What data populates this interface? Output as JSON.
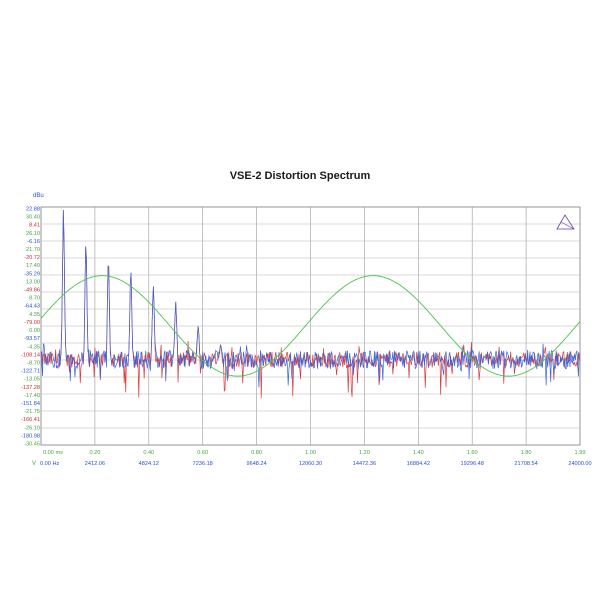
{
  "chart_data": {
    "type": "line",
    "title": "VSE-2 Distortion Spectrum",
    "left_axis_unit": "dBu",
    "left_axis_ticks": [
      {
        "label": "22.88",
        "color": "#2a4fd8"
      },
      {
        "label": "30.40",
        "color": "#3fa83f"
      },
      {
        "label": "8.41",
        "color": "#c03030"
      },
      {
        "label": "26.10",
        "color": "#3fa83f"
      },
      {
        "label": "-6.16",
        "color": "#2a4fd8"
      },
      {
        "label": "21.70",
        "color": "#3fa83f"
      },
      {
        "label": "-20.72",
        "color": "#c03030"
      },
      {
        "label": "17.40",
        "color": "#3fa83f"
      },
      {
        "label": "-35.29",
        "color": "#2a4fd8"
      },
      {
        "label": "13.00",
        "color": "#3fa83f"
      },
      {
        "label": "-49.86",
        "color": "#c03030"
      },
      {
        "label": "8.70",
        "color": "#3fa83f"
      },
      {
        "label": "-64.43",
        "color": "#2a4fd8"
      },
      {
        "label": "4.35",
        "color": "#3fa83f"
      },
      {
        "label": "-79.00",
        "color": "#c03030"
      },
      {
        "label": "0.00",
        "color": "#3fa83f"
      },
      {
        "label": "-93.57",
        "color": "#2a4fd8"
      },
      {
        "label": "-4.35",
        "color": "#3fa83f"
      },
      {
        "label": "-108.14",
        "color": "#c03030"
      },
      {
        "label": "-8.70",
        "color": "#3fa83f"
      },
      {
        "label": "-122.71",
        "color": "#2a4fd8"
      },
      {
        "label": "-13.05",
        "color": "#3fa83f"
      },
      {
        "label": "-137.28",
        "color": "#c03030"
      },
      {
        "label": "-17.40",
        "color": "#3fa83f"
      },
      {
        "label": "-151.84",
        "color": "#2a4fd8"
      },
      {
        "label": "-21.75",
        "color": "#3fa83f"
      },
      {
        "label": "-166.41",
        "color": "#c03030"
      },
      {
        "label": "-26.10",
        "color": "#3fa83f"
      },
      {
        "label": "-180.98",
        "color": "#2a4fd8"
      },
      {
        "label": "-30.45",
        "color": "#3fa83f"
      }
    ],
    "x_axis_green_ticks": [
      "0.00 ms",
      "0.20",
      "0.40",
      "0.60",
      "0.80",
      "1.00",
      "1.20",
      "1.40",
      "1.60",
      "1.80",
      "1.99"
    ],
    "x_axis_hz_ticks": [
      "0.00 Hz",
      "2412.06",
      "4824.12",
      "7236.18",
      "9648.24",
      "12060.30",
      "14472.36",
      "16884.42",
      "19296.48",
      "21708.54",
      "24000.00"
    ],
    "x_axis_v_label": "V",
    "grid": true,
    "series": [
      {
        "color": "#3a63d8"
      },
      {
        "color": "#d83a3a"
      },
      {
        "color": "#4cc44c"
      }
    ],
    "spectrum_peaks": [
      {
        "x": 1000,
        "y": 22.88
      },
      {
        "x": 2000,
        "y": -6.16
      },
      {
        "x": 3000,
        "y": -20.72
      },
      {
        "x": 4000,
        "y": -30.0
      },
      {
        "x": 5000,
        "y": -44.0
      },
      {
        "x": 6000,
        "y": -58.0
      },
      {
        "x": 7000,
        "y": -79.0
      },
      {
        "x": 8000,
        "y": -95.0
      }
    ],
    "noise_floor": -108.14,
    "waveform": {
      "frequency_hz": 1000,
      "amplitude": 13.0,
      "offset": 0.0
    },
    "x_range_hz": [
      0,
      24000
    ],
    "x_range_ms": [
      0,
      1.99
    ],
    "left_axis_range": [
      -180.98,
      22.88
    ],
    "right_axis_range": [
      -30.45,
      30.4
    ]
  }
}
